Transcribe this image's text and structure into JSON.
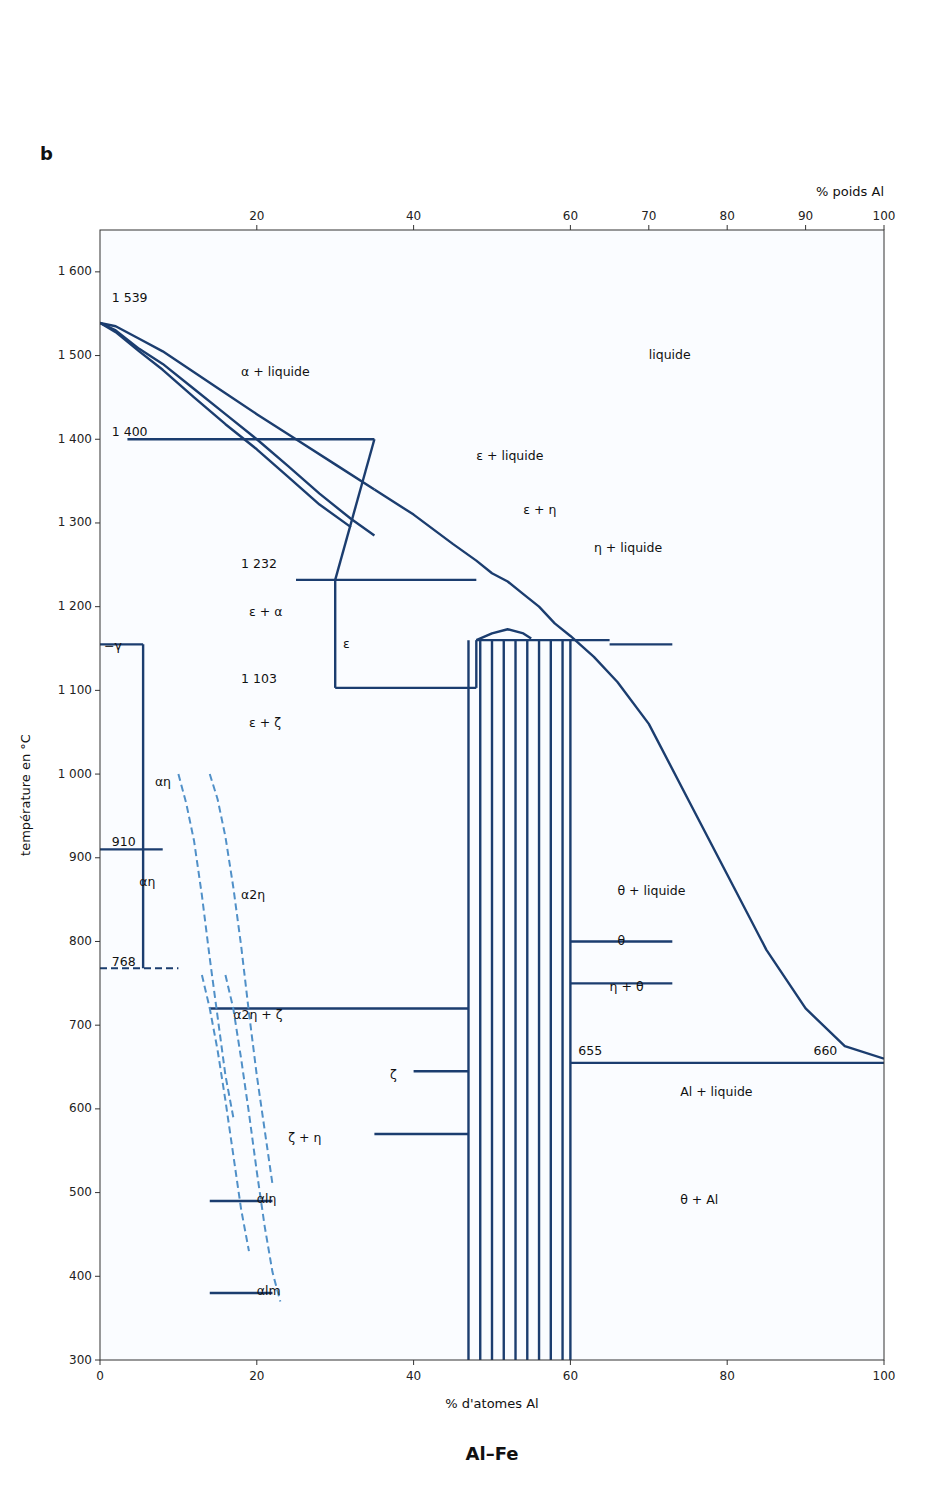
{
  "chart_data": {
    "type": "line",
    "title": "Al–Fe",
    "xlabel": "% d'atomes  Al",
    "x2label": "% poids  Al",
    "ylabel": "température en  °C",
    "panel_label": "b",
    "xlim": [
      0,
      100
    ],
    "ylim": [
      300,
      1650
    ],
    "xticks": [
      0,
      20,
      40,
      60,
      80,
      100
    ],
    "x2lim": [
      0,
      100
    ],
    "x2ticks": [
      20,
      40,
      60,
      70,
      80,
      90,
      100
    ],
    "yticks": [
      300,
      400,
      500,
      600,
      700,
      800,
      900,
      {
        "value": 1000,
        "label": "1 000"
      },
      {
        "value": 1100,
        "label": "1 100"
      },
      {
        "value": 1200,
        "label": "1 200"
      },
      {
        "value": 1300,
        "label": "1 300"
      },
      {
        "value": 1400,
        "label": "1 400"
      },
      {
        "value": 1500,
        "label": "1 500"
      },
      {
        "value": 1600,
        "label": "1 600"
      }
    ],
    "grid": false,
    "series": [
      {
        "x": [
          0,
          2,
          5,
          8,
          12,
          16,
          20,
          25,
          30,
          35
        ],
        "values": [
          1539,
          1535,
          1520,
          1505,
          1480,
          1455,
          1430,
          1400,
          1370,
          1340
        ],
        "color": "#1b3d6f",
        "line_style": "solid"
      },
      {
        "x": [
          0,
          2,
          5,
          8,
          12,
          16,
          20,
          24,
          28,
          32,
          35
        ],
        "values": [
          1539,
          1530,
          1508,
          1490,
          1460,
          1430,
          1400,
          1368,
          1335,
          1305,
          1285
        ],
        "color": "#1b3d6f",
        "line_style": "solid"
      },
      {
        "x": [
          0,
          2,
          5,
          8,
          12,
          16,
          20,
          24,
          28,
          32
        ],
        "values": [
          1539,
          1528,
          1505,
          1483,
          1450,
          1418,
          1388,
          1355,
          1322,
          1295
        ],
        "color": "#1b3d6f",
        "line_style": "solid"
      },
      {
        "x": [
          35,
          40,
          45,
          48,
          50,
          52,
          54,
          56,
          58,
          60,
          63,
          66,
          70,
          75,
          80,
          85,
          90,
          95,
          100
        ],
        "values": [
          1340,
          1310,
          1275,
          1255,
          1240,
          1230,
          1215,
          1200,
          1180,
          1165,
          1140,
          1110,
          1060,
          970,
          880,
          790,
          720,
          675,
          660
        ],
        "color": "#1b3d6f",
        "line_style": "solid"
      },
      {
        "x": [
          3.5,
          35
        ],
        "values": [
          1400,
          1400
        ],
        "color": "#1b3d6f",
        "line_style": "solid"
      },
      {
        "x": [
          30,
          30
        ],
        "values": [
          1103,
          1232
        ],
        "color": "#1b3d6f",
        "line_style": "solid"
      },
      {
        "x": [
          25,
          48
        ],
        "values": [
          1232,
          1232
        ],
        "color": "#1b3d6f",
        "line_style": "solid"
      },
      {
        "x": [
          30,
          48
        ],
        "values": [
          1103,
          1103
        ],
        "color": "#1b3d6f",
        "line_style": "solid"
      },
      {
        "x": [
          48,
          48
        ],
        "values": [
          1103,
          1160
        ],
        "color": "#1b3d6f",
        "line_style": "solid"
      },
      {
        "x": [
          30,
          35
        ],
        "values": [
          1232,
          1400
        ],
        "color": "#1b3d6f",
        "line_style": "solid"
      },
      {
        "x": [
          48,
          50,
          52,
          54,
          55
        ],
        "values": [
          1160,
          1168,
          1173,
          1168,
          1162
        ],
        "color": "#1b3d6f",
        "line_style": "solid"
      },
      {
        "x": [
          48,
          65
        ],
        "values": [
          1160,
          1160
        ],
        "color": "#1b3d6f",
        "line_style": "solid"
      },
      {
        "x": [
          47.0,
          47.0
        ],
        "values": [
          300,
          1160
        ],
        "color": "#1b3d6f",
        "line_style": "solid"
      },
      {
        "x": [
          48.5,
          48.5
        ],
        "values": [
          300,
          1160
        ],
        "color": "#1b3d6f",
        "line_style": "solid"
      },
      {
        "x": [
          50.0,
          50.0
        ],
        "values": [
          300,
          1160
        ],
        "color": "#1b3d6f",
        "line_style": "solid"
      },
      {
        "x": [
          51.5,
          51.5
        ],
        "values": [
          300,
          1160
        ],
        "color": "#1b3d6f",
        "line_style": "solid"
      },
      {
        "x": [
          53.0,
          53.0
        ],
        "values": [
          300,
          1160
        ],
        "color": "#1b3d6f",
        "line_style": "solid"
      },
      {
        "x": [
          54.5,
          54.5
        ],
        "values": [
          300,
          1160
        ],
        "color": "#1b3d6f",
        "line_style": "solid"
      },
      {
        "x": [
          56.0,
          56.0
        ],
        "values": [
          300,
          1160
        ],
        "color": "#1b3d6f",
        "line_style": "solid"
      },
      {
        "x": [
          57.5,
          57.5
        ],
        "values": [
          300,
          1160
        ],
        "color": "#1b3d6f",
        "line_style": "solid"
      },
      {
        "x": [
          59.0,
          59.0
        ],
        "values": [
          300,
          1160
        ],
        "color": "#1b3d6f",
        "line_style": "solid"
      },
      {
        "x": [
          60.0,
          60.0
        ],
        "values": [
          300,
          1160
        ],
        "color": "#1b3d6f",
        "line_style": "solid"
      },
      {
        "x": [
          60,
          100
        ],
        "values": [
          655,
          655
        ],
        "color": "#1b3d6f",
        "line_style": "solid"
      },
      {
        "x": [
          65,
          73
        ],
        "values": [
          1155,
          1155
        ],
        "color": "#1b3d6f",
        "line_style": "solid"
      },
      {
        "x": [
          5.5,
          5.5
        ],
        "values": [
          768,
          1155
        ],
        "color": "#1b3d6f",
        "line_style": "solid"
      },
      {
        "x": [
          0,
          5.5
        ],
        "values": [
          1155,
          1155
        ],
        "color": "#1b3d6f",
        "line_style": "solid"
      },
      {
        "x": [
          0,
          8
        ],
        "values": [
          910,
          910
        ],
        "color": "#1b3d6f",
        "line_style": "solid"
      },
      {
        "x": [
          0,
          10
        ],
        "values": [
          768,
          768
        ],
        "color": "#1b3d6f",
        "line_style": "dashed"
      },
      {
        "x": [
          60,
          73
        ],
        "values": [
          800,
          800
        ],
        "color": "#1b3d6f",
        "line_style": "solid"
      },
      {
        "x": [
          60,
          73
        ],
        "values": [
          750,
          750
        ],
        "color": "#1b3d6f",
        "line_style": "solid"
      },
      {
        "x": [
          14,
          47
        ],
        "values": [
          720,
          720
        ],
        "color": "#1b3d6f",
        "line_style": "solid"
      },
      {
        "x": [
          40,
          47
        ],
        "values": [
          645,
          645
        ],
        "color": "#1b3d6f",
        "line_style": "solid"
      },
      {
        "x": [
          35,
          47
        ],
        "values": [
          570,
          570
        ],
        "color": "#1b3d6f",
        "line_style": "solid"
      },
      {
        "x": [
          14,
          22
        ],
        "values": [
          490,
          490
        ],
        "color": "#1b3d6f",
        "line_style": "solid"
      },
      {
        "x": [
          14,
          22
        ],
        "values": [
          380,
          380
        ],
        "color": "#1b3d6f",
        "line_style": "solid"
      },
      {
        "x": [
          10,
          11,
          12,
          13,
          14,
          15,
          16,
          17
        ],
        "values": [
          1000,
          965,
          920,
          855,
          780,
          710,
          640,
          590
        ],
        "color": "#5090c8",
        "line_style": "dashed"
      },
      {
        "x": [
          14,
          15,
          16,
          17,
          18,
          19,
          20,
          21,
          22
        ],
        "values": [
          1000,
          970,
          925,
          865,
          795,
          715,
          640,
          575,
          510
        ],
        "color": "#5090c8",
        "line_style": "dashed"
      },
      {
        "x": [
          13,
          14,
          15,
          16,
          17,
          18,
          19
        ],
        "values": [
          760,
          720,
          670,
          610,
          545,
          480,
          430
        ],
        "color": "#5090c8",
        "line_style": "dashed"
      },
      {
        "x": [
          16,
          17,
          18,
          19,
          20,
          21,
          22,
          23
        ],
        "values": [
          760,
          720,
          660,
          595,
          525,
          460,
          405,
          370
        ],
        "color": "#5090c8",
        "line_style": "dashed"
      }
    ],
    "annotations": [
      {
        "text": "liquide",
        "x": 70,
        "y": 1500
      },
      {
        "text": "α + liquide",
        "x": 18,
        "y": 1480
      },
      {
        "text": "ε + liquide",
        "x": 48,
        "y": 1380
      },
      {
        "text": "ε + η",
        "x": 54,
        "y": 1315
      },
      {
        "text": "η + liquide",
        "x": 63,
        "y": 1270
      },
      {
        "text": "ε + α",
        "x": 19,
        "y": 1193
      },
      {
        "text": "ε",
        "x": 31,
        "y": 1155
      },
      {
        "text": "ε + ζ",
        "x": 19,
        "y": 1060
      },
      {
        "text": "αη",
        "x": 7,
        "y": 990
      },
      {
        "text": "αη",
        "x": 5,
        "y": 870
      },
      {
        "text": "α2η",
        "x": 18,
        "y": 855
      },
      {
        "text": "α2η + ζ",
        "x": 17,
        "y": 712
      },
      {
        "text": "ζ",
        "x": 37,
        "y": 640
      },
      {
        "text": "ζ + η",
        "x": 24,
        "y": 565
      },
      {
        "text": "αlη",
        "x": 20,
        "y": 492
      },
      {
        "text": "αlm",
        "x": 20,
        "y": 382
      },
      {
        "text": "θ + liquide",
        "x": 66,
        "y": 860
      },
      {
        "text": "θ",
        "x": 66,
        "y": 800
      },
      {
        "text": "η + θ",
        "x": 65,
        "y": 745
      },
      {
        "text": "Al + liquide",
        "x": 74,
        "y": 620
      },
      {
        "text": "θ + Al",
        "x": 74,
        "y": 490
      },
      {
        "text": "−γ",
        "x": 0.5,
        "y": 1152
      },
      {
        "text": "1 539",
        "x": 1.5,
        "y": 1568
      },
      {
        "text": "1 400",
        "x": 1.5,
        "y": 1408
      },
      {
        "text": "1 232",
        "x": 18,
        "y": 1250
      },
      {
        "text": "1 103",
        "x": 18,
        "y": 1113
      },
      {
        "text": "910",
        "x": 1.5,
        "y": 918
      },
      {
        "text": "768",
        "x": 1.5,
        "y": 775
      },
      {
        "text": "655",
        "x": 61,
        "y": 668
      },
      {
        "text": "660",
        "x": 91,
        "y": 668
      }
    ]
  }
}
